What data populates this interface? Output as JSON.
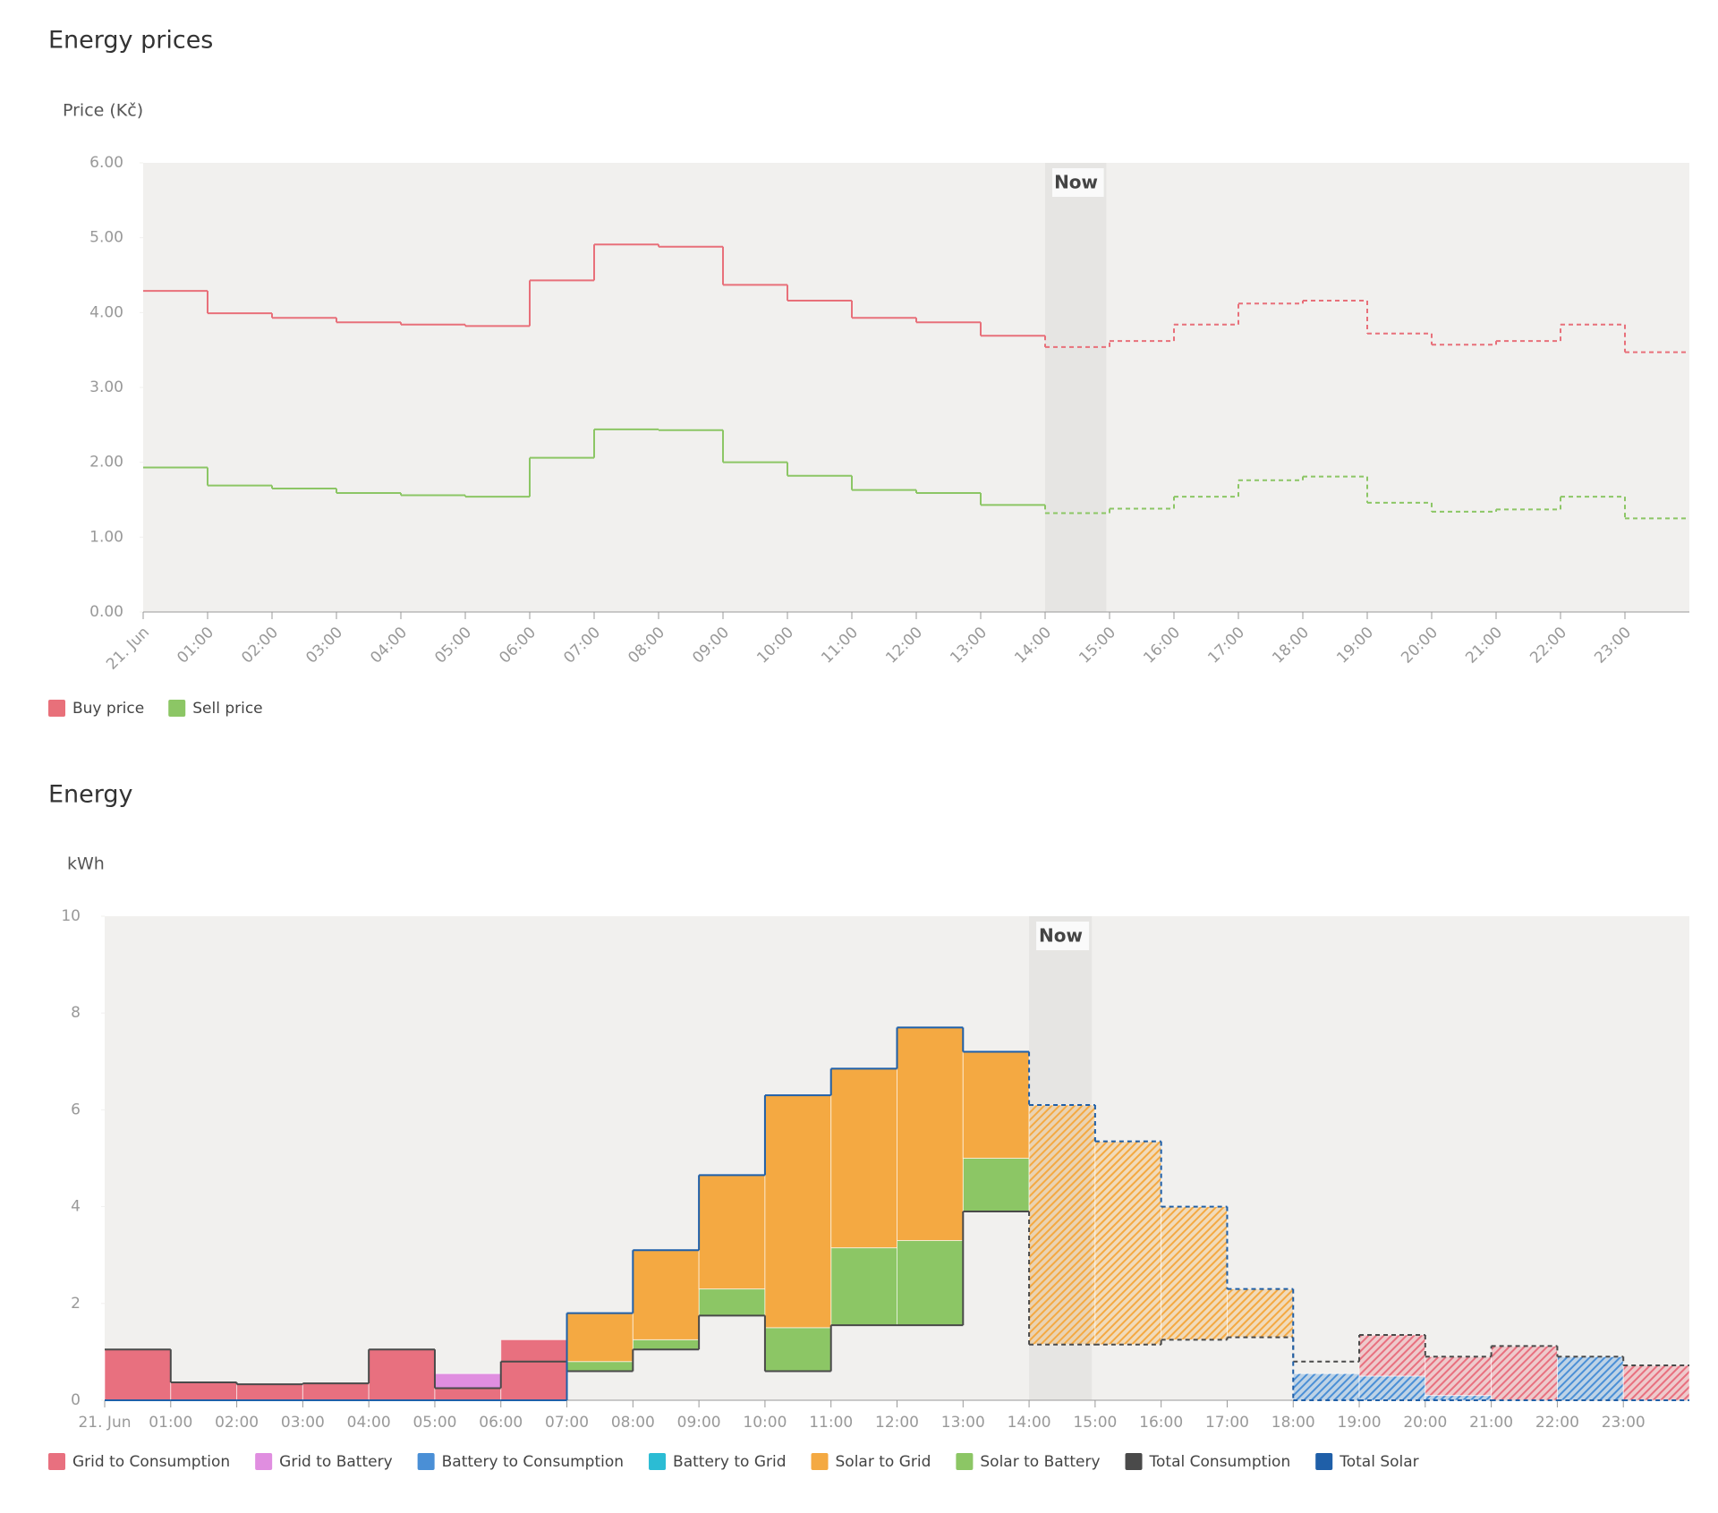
{
  "chart_data": [
    {
      "type": "line",
      "title": "Energy prices",
      "y_label": "Price (Kč)",
      "categories": [
        "21. Jun",
        "01:00",
        "02:00",
        "03:00",
        "04:00",
        "05:00",
        "06:00",
        "07:00",
        "08:00",
        "09:00",
        "10:00",
        "11:00",
        "12:00",
        "13:00",
        "14:00",
        "15:00",
        "16:00",
        "17:00",
        "18:00",
        "19:00",
        "20:00",
        "21:00",
        "22:00",
        "23:00"
      ],
      "ylim": [
        0,
        6
      ],
      "yticks": [
        {
          "value": 0,
          "label": "0.00"
        },
        {
          "value": 1,
          "label": "1.00"
        },
        {
          "value": 2,
          "label": "2.00"
        },
        {
          "value": 3,
          "label": "3.00"
        },
        {
          "value": 4,
          "label": "4.00"
        },
        {
          "value": 5,
          "label": "5.00"
        },
        {
          "value": 6,
          "label": "6.00"
        }
      ],
      "now": {
        "label": "Now",
        "category": "14:00"
      },
      "series": [
        {
          "name": "Buy price",
          "color": "#e8707a",
          "values": [
            4.29,
            3.99,
            3.93,
            3.87,
            3.84,
            3.82,
            4.43,
            4.91,
            4.88,
            4.37,
            4.16,
            3.93,
            3.87,
            3.69,
            3.54,
            3.62,
            3.84,
            4.12,
            4.16,
            3.72,
            3.57,
            3.62,
            3.84,
            3.47
          ]
        },
        {
          "name": "Sell price",
          "color": "#8cc665",
          "values": [
            1.93,
            1.69,
            1.65,
            1.59,
            1.56,
            1.54,
            2.06,
            2.44,
            2.43,
            2.0,
            1.82,
            1.63,
            1.59,
            1.43,
            1.32,
            1.38,
            1.54,
            1.76,
            1.81,
            1.46,
            1.34,
            1.37,
            1.54,
            1.25
          ]
        }
      ]
    },
    {
      "type": "bar",
      "title": "Energy",
      "y_label": "kWh",
      "categories": [
        "21. Jun",
        "01:00",
        "02:00",
        "03:00",
        "04:00",
        "05:00",
        "06:00",
        "07:00",
        "08:00",
        "09:00",
        "10:00",
        "11:00",
        "12:00",
        "13:00",
        "14:00",
        "15:00",
        "16:00",
        "17:00",
        "18:00",
        "19:00",
        "20:00",
        "21:00",
        "22:00",
        "23:00"
      ],
      "ylim": [
        0,
        10
      ],
      "yticks": [
        0,
        2,
        4,
        6,
        8,
        10
      ],
      "now": {
        "label": "Now",
        "category": "14:00"
      },
      "series": [
        {
          "name": "Grid to Consumption",
          "color": "#e8707f",
          "values": [
            1.05,
            0.37,
            0.33,
            0.35,
            1.05,
            0.25,
            1.25,
            0,
            0,
            0,
            0,
            0,
            0,
            0,
            0,
            0,
            0,
            0,
            0,
            0.85,
            0.8,
            1.12,
            0,
            0.72
          ]
        },
        {
          "name": "Grid to Battery",
          "color": "#e08ee0",
          "values": [
            0,
            0,
            0,
            0,
            0,
            0.3,
            0,
            0,
            0,
            0,
            0,
            0,
            0,
            0,
            0,
            0,
            0,
            0,
            0,
            0,
            0,
            0,
            0,
            0
          ]
        },
        {
          "name": "Battery to Consumption",
          "color": "#4a8fd6",
          "values": [
            0,
            0,
            0,
            0,
            0,
            0,
            0,
            0,
            0,
            0,
            0,
            0,
            0,
            0,
            0,
            0,
            0,
            0,
            0.55,
            0.5,
            0.1,
            0,
            0.9,
            0
          ]
        },
        {
          "name": "Battery to Grid",
          "color": "#2bbcd4",
          "values": [
            0,
            0,
            0,
            0,
            0,
            0,
            0,
            0,
            0,
            0,
            0,
            0,
            0,
            0,
            0,
            0,
            0,
            0,
            0,
            0,
            0,
            0,
            0,
            0
          ]
        },
        {
          "name": "Solar to Grid",
          "color": "#f4a942",
          "values": [
            0,
            0,
            0,
            0,
            0,
            0,
            0,
            1.0,
            1.85,
            2.35,
            4.8,
            3.7,
            4.4,
            2.2,
            4.95,
            4.2,
            2.75,
            1.0,
            0,
            0,
            0,
            0,
            0,
            0
          ]
        },
        {
          "name": "Solar to Battery",
          "color": "#8cc665",
          "values": [
            0,
            0,
            0,
            0,
            0,
            0,
            0,
            0.2,
            0.2,
            0.55,
            0.9,
            1.6,
            1.75,
            1.1,
            0,
            0,
            0,
            0,
            0,
            0,
            0,
            0,
            0,
            0
          ]
        },
        {
          "name": "Total Consumption",
          "color": "#4a4a4a",
          "type": "line",
          "values": [
            1.05,
            0.37,
            0.33,
            0.35,
            1.05,
            0.25,
            0.8,
            0.6,
            1.05,
            1.75,
            0.6,
            1.55,
            1.55,
            3.9,
            1.15,
            1.15,
            1.25,
            1.3,
            0.8,
            1.35,
            0.9,
            1.12,
            0.9,
            0.72
          ]
        },
        {
          "name": "Total Solar",
          "color": "#1f5fa8",
          "type": "line",
          "values": [
            0,
            0,
            0,
            0,
            0,
            0,
            0,
            1.8,
            3.1,
            4.65,
            6.3,
            6.85,
            7.7,
            7.2,
            6.1,
            5.35,
            4.0,
            2.3,
            0,
            0,
            0,
            0,
            0,
            0
          ]
        }
      ]
    }
  ]
}
